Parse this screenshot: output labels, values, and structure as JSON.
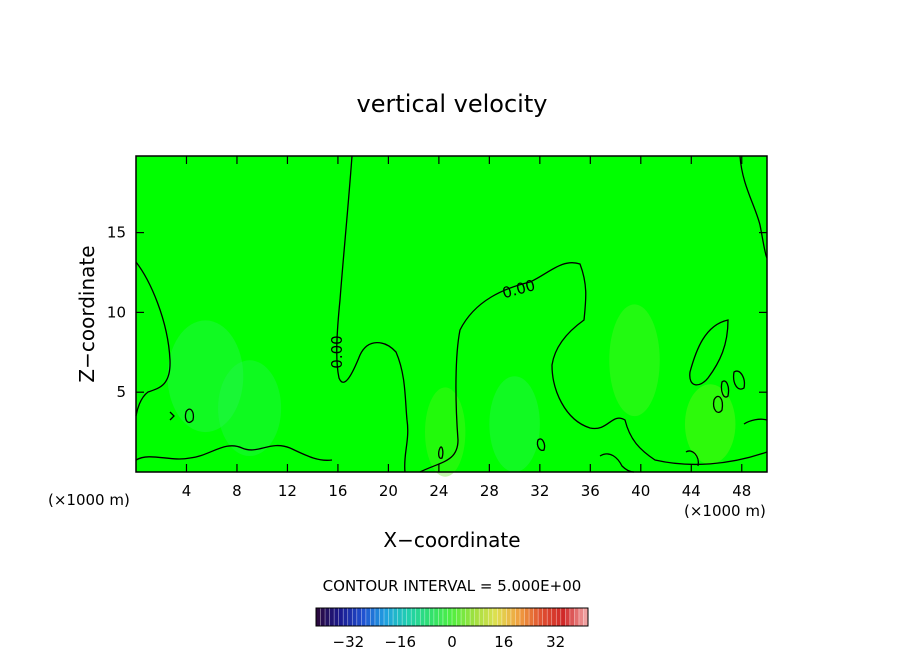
{
  "chart_data": {
    "type": "heatmap",
    "title": "vertical velocity",
    "xlabel": "X−coordinate",
    "ylabel": "Z−coordinate",
    "x_unit_left": "(×1000 m)",
    "x_unit_right": "(×1000 m)",
    "xlim": [
      0,
      50
    ],
    "ylim": [
      0,
      19.8
    ],
    "xticks": [
      4,
      8,
      12,
      16,
      20,
      24,
      28,
      32,
      36,
      40,
      44,
      48
    ],
    "yticks": [
      5,
      10,
      15
    ],
    "background_value": 0,
    "field_color": "#00ff00",
    "contour_label": "0.00",
    "contour_interval_text": "CONTOUR INTERVAL = 5.000E+00",
    "colorbar": {
      "range": [
        -42,
        42
      ],
      "ticks": [
        -32,
        -16,
        0,
        16,
        32
      ],
      "colors": [
        "#2a0a40",
        "#1a1a90",
        "#2050d0",
        "#20a0e0",
        "#20d0b0",
        "#30e070",
        "#50f040",
        "#a0e040",
        "#e0e050",
        "#f0a040",
        "#e05030",
        "#d02828",
        "#f0a0a0"
      ]
    }
  }
}
